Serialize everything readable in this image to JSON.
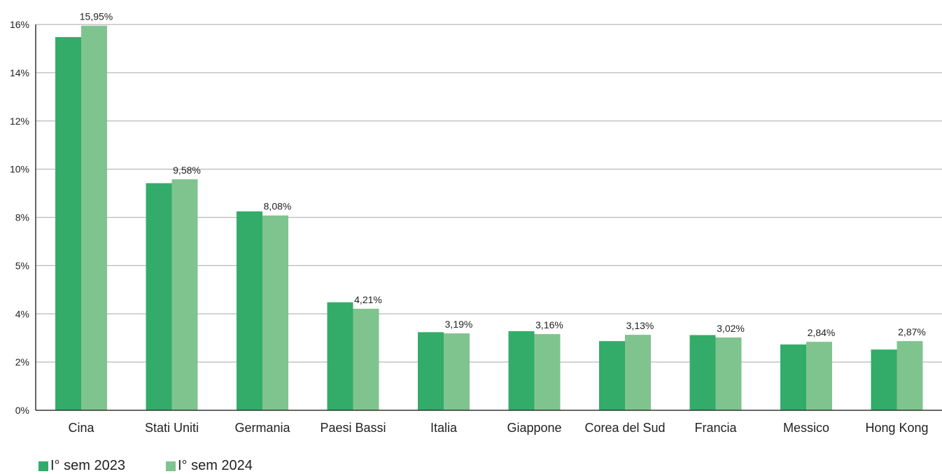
{
  "chart_data": {
    "type": "bar",
    "categories": [
      "Cina",
      "Stati Uniti",
      "Germania",
      "Paesi Bassi",
      "Italia",
      "Giappone",
      "Corea del Sud",
      "Francia",
      "Messico",
      "Hong Kong"
    ],
    "series": [
      {
        "name": "I° sem 2023",
        "color": "#33ac69",
        "values": [
          15.48,
          9.42,
          8.25,
          4.48,
          3.24,
          3.28,
          2.87,
          3.12,
          2.73,
          2.52
        ]
      },
      {
        "name": "I° sem 2024",
        "color": "#7fc48f",
        "values": [
          15.95,
          9.58,
          8.08,
          4.21,
          3.19,
          3.16,
          3.13,
          3.02,
          2.84,
          2.87
        ],
        "data_labels": [
          "15,95%",
          "9,58%",
          "8,08%",
          "4,21%",
          "3,19%",
          "3,16%",
          "3,13%",
          "3,02%",
          "2,84%",
          "2,87%"
        ]
      }
    ],
    "y_ticks": [
      "0%",
      "2%",
      "4%",
      "5%",
      "8%",
      "10%",
      "12%",
      "14%",
      "16%"
    ],
    "ylim": [
      0,
      16
    ],
    "grid": true,
    "legend_position": "bottom-left"
  }
}
